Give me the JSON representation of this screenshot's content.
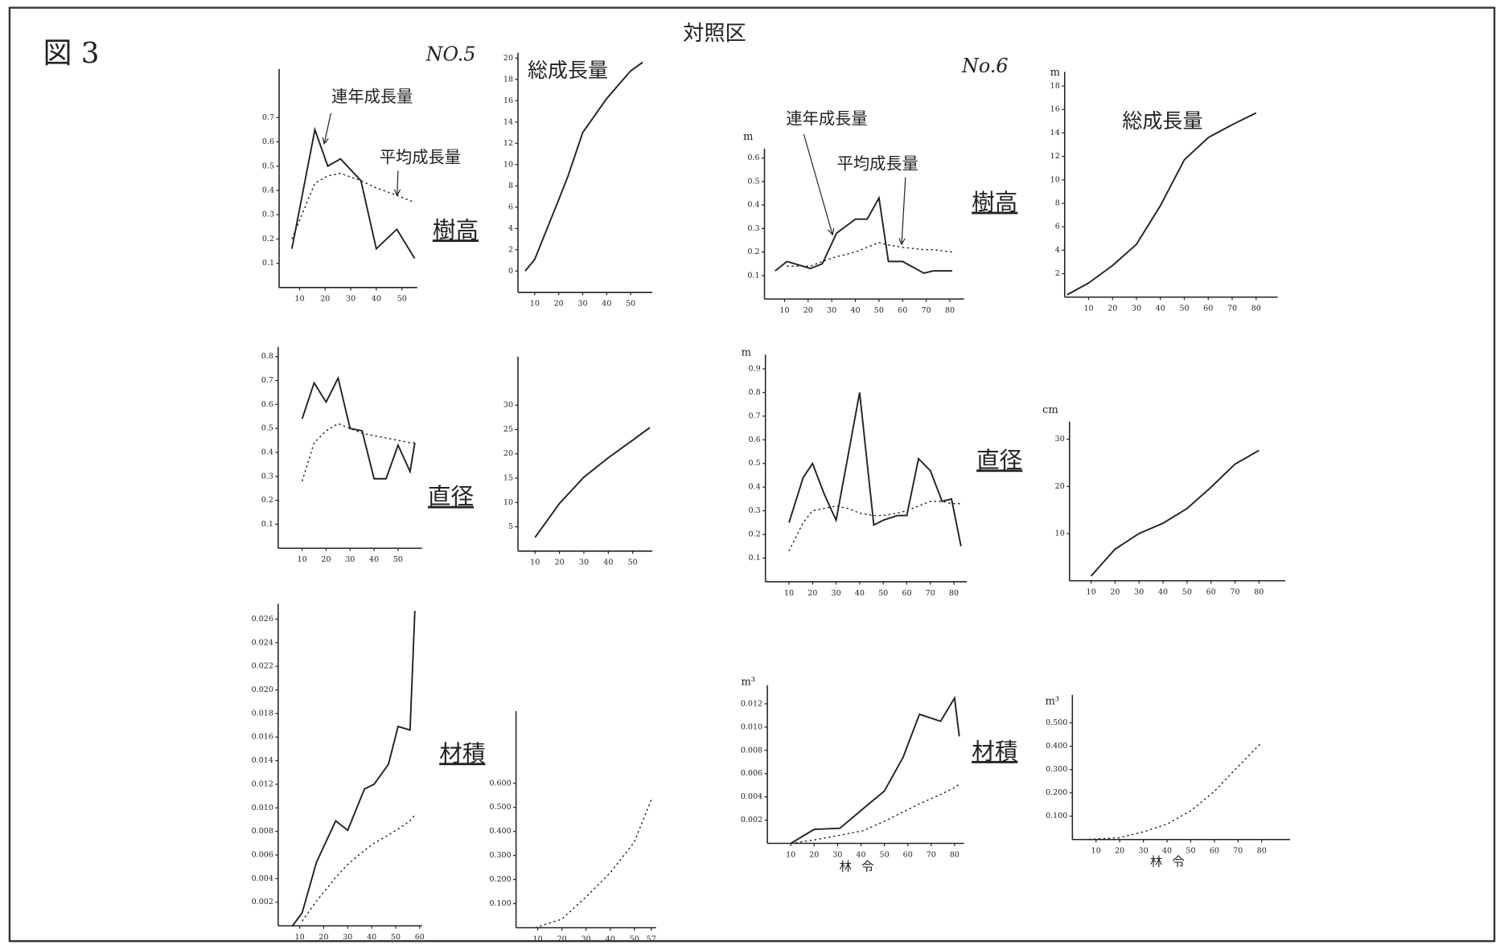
{
  "figure_label": "図 3",
  "heading": "対照区",
  "plot_names": [
    "NO.5",
    "No.6"
  ],
  "chart_data": [
    {
      "type": "line",
      "label": "樹高",
      "x": [
        7,
        16,
        21,
        26,
        34,
        40,
        48,
        55
      ],
      "xlim": [
        2,
        56
      ],
      "xticks": [
        10,
        20,
        30,
        40,
        50
      ],
      "ylim": [
        0,
        0.9
      ],
      "yticks": [
        0.1,
        0.2,
        0.3,
        0.4,
        0.5,
        0.6,
        0.7
      ],
      "series": [
        {
          "name": "連年成長量",
          "color": "#222",
          "dashed": false,
          "values": [
            0.16,
            0.65,
            0.5,
            0.53,
            0.44,
            0.16,
            0.24,
            0.12
          ]
        },
        {
          "name": "平均成長量",
          "color": "#222",
          "dashed": true,
          "values": [
            0.2,
            0.43,
            0.46,
            0.47,
            0.44,
            0.41,
            0.38,
            0.35
          ]
        }
      ]
    },
    {
      "type": "line",
      "title": "総成長量",
      "x": [
        6,
        10,
        20,
        24,
        30,
        40,
        50,
        55
      ],
      "xlim": [
        3,
        59
      ],
      "xticks": [
        10,
        20,
        30,
        40,
        50
      ],
      "ylim": [
        -2,
        20.5
      ],
      "yticks": [
        0,
        2,
        4,
        6,
        8,
        10,
        12,
        14,
        16,
        18,
        20
      ],
      "series": [
        {
          "color": "#222",
          "dashed": false,
          "values": [
            0,
            1.1,
            6.7,
            9,
            13,
            16.2,
            18.8,
            19.6
          ]
        }
      ]
    },
    {
      "type": "line",
      "label": "直径",
      "x": [
        10,
        15,
        20,
        25,
        30,
        35,
        40,
        45,
        50,
        55,
        57
      ],
      "xlim": [
        0,
        60
      ],
      "xticks": [
        10,
        20,
        30,
        40,
        50
      ],
      "ylim": [
        0,
        0.84
      ],
      "yticks": [
        0.1,
        0.2,
        0.3,
        0.4,
        0.5,
        0.6,
        0.7,
        0.8
      ],
      "series": [
        {
          "color": "#222",
          "dashed": false,
          "values": [
            0.54,
            0.69,
            0.61,
            0.71,
            0.5,
            0.49,
            0.29,
            0.29,
            0.43,
            0.32,
            0.44
          ]
        },
        {
          "color": "#222",
          "dashed": true,
          "values": [
            0.28,
            0.44,
            0.49,
            0.52,
            0.5,
            0.48,
            0.47,
            0.46,
            0.45,
            0.44,
            0.44
          ]
        }
      ]
    },
    {
      "type": "line",
      "x": [
        10,
        20,
        30,
        40,
        50,
        57
      ],
      "xlim": [
        3,
        58
      ],
      "xticks": [
        10,
        20,
        30,
        40,
        50
      ],
      "ylim": [
        0,
        40
      ],
      "yticks": [
        5,
        10,
        15,
        20,
        25,
        30
      ],
      "series": [
        {
          "color": "#222",
          "dashed": false,
          "values": [
            2.8,
            9.8,
            15.2,
            19.2,
            22.8,
            25.4
          ]
        }
      ]
    },
    {
      "type": "line",
      "label": "材積",
      "x": [
        7,
        11,
        17,
        25,
        30,
        37,
        41,
        47,
        51,
        56,
        58
      ],
      "xlim": [
        1,
        61
      ],
      "xticks": [
        10,
        20,
        30,
        40,
        50,
        60
      ],
      "ylim": [
        0,
        0.0273
      ],
      "yticks": [
        0.002,
        0.004,
        0.006,
        0.008,
        {
          "value": 0.01,
          "label": "0.010"
        },
        0.012,
        0.014,
        0.016,
        0.018,
        {
          "value": 0.02,
          "label": "0.020"
        },
        0.022,
        0.024,
        0.026
      ],
      "series": [
        {
          "color": "#222",
          "dashed": false,
          "values": [
            0,
            0.0011,
            0.0054,
            0.0089,
            0.0081,
            0.0116,
            0.012,
            0.0137,
            0.0169,
            0.0166,
            0.0267
          ]
        },
        {
          "color": "#222",
          "dashed": true,
          "values": [
            null,
            0.0004,
            0.0021,
            0.0041,
            0.0052,
            0.0064,
            0.007,
            0.0077,
            0.0082,
            0.0089,
            0.0094
          ]
        }
      ]
    },
    {
      "type": "line",
      "x": [
        9,
        20,
        30,
        40,
        50,
        57
      ],
      "xlim": [
        1,
        59
      ],
      "xticks": [
        10,
        20,
        30,
        40,
        50,
        57
      ],
      "ylim": [
        0,
        0.9
      ],
      "yticks": [
        {
          "value": 0.1,
          "label": "0.100"
        },
        {
          "value": 0.2,
          "label": "0.200"
        },
        {
          "value": 0.3,
          "label": "0.300"
        },
        {
          "value": 0.4,
          "label": "0.400"
        },
        {
          "value": 0.5,
          "label": "0.500"
        },
        {
          "value": 0.6,
          "label": "0.600"
        }
      ],
      "series": [
        {
          "color": "#222",
          "dashed": true,
          "values": [
            0,
            0.036,
            0.128,
            0.228,
            0.356,
            0.532
          ]
        }
      ]
    },
    {
      "type": "line",
      "label": "樹高",
      "unit": "m",
      "x": [
        6,
        11,
        21,
        26,
        32,
        40,
        45,
        50,
        54,
        60,
        69,
        73,
        81
      ],
      "xlim": [
        1.5,
        86
      ],
      "xticks": [
        10,
        20,
        30,
        40,
        50,
        60,
        70,
        80
      ],
      "ylim": [
        0,
        0.64
      ],
      "yticks": [
        0.1,
        0.2,
        0.3,
        0.4,
        0.5,
        0.6
      ],
      "series": [
        {
          "name": "連年成長量",
          "color": "#222",
          "dashed": false,
          "values": [
            0.12,
            0.16,
            0.13,
            0.15,
            0.28,
            0.34,
            0.34,
            0.43,
            0.16,
            0.16,
            0.11,
            0.12,
            0.12
          ]
        },
        {
          "name": "平均成長量",
          "color": "#222",
          "dashed": true,
          "values": [
            null,
            0.14,
            0.14,
            0.16,
            0.18,
            0.2,
            0.22,
            0.24,
            0.23,
            0.22,
            0.21,
            0.21,
            0.2
          ]
        }
      ]
    },
    {
      "type": "line",
      "title": "総成長量",
      "unit": "m",
      "x": [
        1,
        10,
        20,
        30,
        40,
        50,
        60,
        70,
        80
      ],
      "xlim": [
        0,
        89
      ],
      "xticks": [
        10,
        20,
        30,
        40,
        50,
        60,
        70,
        80
      ],
      "ylim": [
        0,
        19.2
      ],
      "yticks": [
        2,
        4,
        6,
        8,
        10,
        12,
        14,
        16,
        18
      ],
      "series": [
        {
          "color": "#222",
          "dashed": false,
          "values": [
            0.2,
            1.2,
            2.7,
            4.5,
            7.8,
            11.7,
            13.6,
            14.7,
            15.7
          ]
        }
      ]
    },
    {
      "type": "line",
      "label": "直径",
      "unit": "m",
      "x": [
        10,
        16,
        20,
        25,
        30,
        35,
        40,
        46,
        50,
        56,
        60,
        65,
        70,
        75,
        79,
        83
      ],
      "xlim": [
        0,
        85.5
      ],
      "xticks": [
        10,
        20,
        30,
        40,
        50,
        60,
        70,
        80
      ],
      "ylim": [
        0,
        0.96
      ],
      "yticks": [
        0.1,
        0.2,
        0.3,
        0.4,
        0.5,
        0.6,
        0.7,
        0.8,
        0.9
      ],
      "series": [
        {
          "color": "#222",
          "dashed": false,
          "values": [
            0.25,
            0.44,
            0.5,
            0.37,
            0.26,
            0.53,
            0.8,
            0.24,
            0.26,
            0.28,
            0.28,
            0.52,
            0.47,
            0.34,
            0.35,
            0.15
          ]
        },
        {
          "color": "#222",
          "dashed": true,
          "values": [
            0.13,
            0.25,
            0.3,
            0.31,
            0.32,
            0.31,
            0.29,
            0.28,
            0.28,
            0.29,
            0.3,
            0.32,
            0.34,
            0.34,
            0.33,
            0.33
          ]
        }
      ]
    },
    {
      "type": "line",
      "unit": "cm",
      "x": [
        10,
        20,
        30,
        40,
        50,
        60,
        70,
        80
      ],
      "xlim": [
        1,
        91
      ],
      "xticks": [
        10,
        20,
        30,
        40,
        50,
        60,
        70,
        80
      ],
      "ylim": [
        0,
        33.7
      ],
      "yticks": [
        10,
        20,
        30
      ],
      "series": [
        {
          "color": "#222",
          "dashed": false,
          "values": [
            1,
            6.7,
            10,
            12.2,
            15.3,
            19.8,
            24.7,
            27.6
          ]
        }
      ]
    },
    {
      "type": "line",
      "label": "材積",
      "unit": "m³",
      "xlabel": "林令",
      "x": [
        10,
        20,
        31,
        41,
        50,
        58,
        65,
        74,
        80,
        82
      ],
      "xlim": [
        0,
        84
      ],
      "xticks": [
        10,
        20,
        30,
        40,
        50,
        60,
        70,
        80
      ],
      "ylim": [
        0,
        0.0136
      ],
      "yticks": [
        0.002,
        0.004,
        0.006,
        0.008,
        {
          "value": 0.01,
          "label": "0.010"
        },
        0.012
      ],
      "series": [
        {
          "color": "#222",
          "dashed": false,
          "values": [
            0,
            0.0012,
            0.0013,
            0.003,
            0.0045,
            0.0074,
            0.0111,
            0.0105,
            0.0125,
            0.0092
          ]
        },
        {
          "color": "#222",
          "dashed": true,
          "values": [
            0,
            0.0003,
            0.0007,
            0.0011,
            0.0019,
            0.0027,
            0.0034,
            0.0042,
            0.0048,
            0.0051
          ]
        }
      ]
    },
    {
      "type": "line",
      "unit": "m³",
      "xlabel": "林令",
      "x": [
        5,
        20,
        30,
        40,
        50,
        60,
        70,
        80
      ],
      "xlim": [
        0,
        92
      ],
      "xticks": [
        10,
        20,
        30,
        40,
        50,
        60,
        70,
        80
      ],
      "ylim": [
        0,
        0.62
      ],
      "yticks": [
        {
          "value": 0.1,
          "label": "0.100"
        },
        {
          "value": 0.2,
          "label": "0.200"
        },
        {
          "value": 0.3,
          "label": "0.300"
        },
        {
          "value": 0.4,
          "label": "0.400"
        },
        {
          "value": 0.5,
          "label": "0.500"
        }
      ],
      "series": [
        {
          "color": "#222",
          "dashed": true,
          "values": [
            0,
            0.008,
            0.033,
            0.066,
            0.123,
            0.206,
            0.313,
            0.416
          ]
        }
      ]
    }
  ]
}
